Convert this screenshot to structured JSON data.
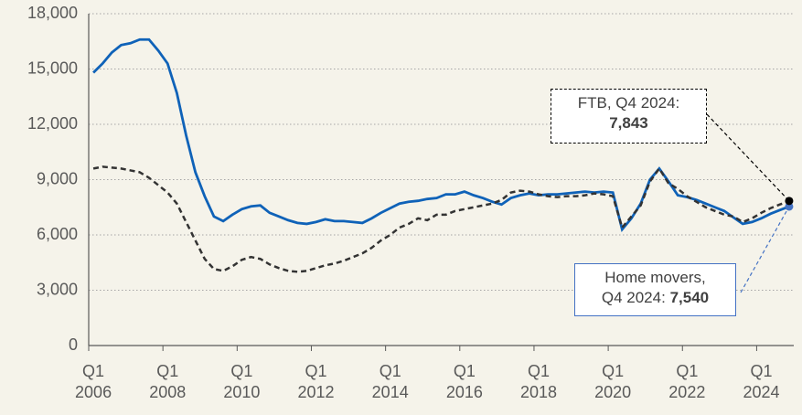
{
  "chart_data": {
    "type": "line",
    "categories": [
      "Q1 2006",
      null,
      null,
      null,
      null,
      null,
      null,
      null,
      "Q1 2008",
      null,
      null,
      null,
      null,
      null,
      null,
      null,
      "Q1 2010",
      null,
      null,
      null,
      null,
      null,
      null,
      null,
      "Q1 2012",
      null,
      null,
      null,
      null,
      null,
      null,
      null,
      "Q1 2014",
      null,
      null,
      null,
      null,
      null,
      null,
      null,
      "Q1 2016",
      null,
      null,
      null,
      null,
      null,
      null,
      null,
      "Q1 2018",
      null,
      null,
      null,
      null,
      null,
      null,
      null,
      "Q1 2020",
      null,
      null,
      null,
      null,
      null,
      null,
      null,
      "Q1 2022",
      null,
      null,
      null,
      null,
      null,
      null,
      null,
      "Q1 2024",
      null,
      null,
      null
    ],
    "series": [
      {
        "color": "#0f62b8",
        "dash": false,
        "annotation": "Home movers, Q4 2024:",
        "values": [
          14800,
          15300,
          15900,
          16300,
          16400,
          16600,
          16600,
          16000,
          15300,
          13700,
          11400,
          9400,
          8100,
          7000,
          6750,
          7100,
          7400,
          7550,
          7600,
          7200,
          7000,
          6800,
          6650,
          6600,
          6700,
          6850,
          6750,
          6750,
          6700,
          6650,
          6900,
          7200,
          7450,
          7700,
          7800,
          7850,
          7950,
          8000,
          8200,
          8200,
          8350,
          8150,
          8000,
          7800,
          7650,
          8000,
          8150,
          8250,
          8150,
          8200,
          8200,
          8250,
          8300,
          8350,
          8300,
          8350,
          8300,
          6300,
          6900,
          7700,
          9000,
          9600,
          8900,
          8150,
          8050,
          7900,
          7700,
          7500,
          7300,
          6950,
          6600,
          6700,
          6900,
          7150,
          7350,
          7540
        ],
        "value_labels": [
          null,
          null,
          null,
          null,
          null,
          null,
          null,
          null,
          null,
          null,
          null,
          null,
          null,
          null,
          null,
          null,
          null,
          null,
          null,
          null,
          null,
          null,
          null,
          null,
          null,
          null,
          null,
          null,
          null,
          null,
          null,
          null,
          null,
          null,
          null,
          null,
          null,
          null,
          null,
          null,
          null,
          null,
          null,
          null,
          null,
          null,
          null,
          null,
          null,
          null,
          null,
          null,
          null,
          null,
          null,
          null,
          null,
          null,
          null,
          null,
          null,
          null,
          null,
          null,
          null,
          null,
          null,
          null,
          null,
          null,
          null,
          null,
          null,
          null,
          null,
          "7,540"
        ]
      },
      {
        "color": "#333333",
        "dash": true,
        "annotation": "FTB, Q4 2024:",
        "values": [
          9600,
          9700,
          9650,
          9600,
          9500,
          9400,
          9100,
          8700,
          8300,
          7700,
          6700,
          5700,
          4700,
          4150,
          4050,
          4300,
          4650,
          4800,
          4700,
          4400,
          4200,
          4050,
          4000,
          4050,
          4200,
          4350,
          4450,
          4600,
          4800,
          5000,
          5300,
          5700,
          6000,
          6400,
          6600,
          6900,
          6800,
          7100,
          7100,
          7300,
          7400,
          7500,
          7600,
          7700,
          7900,
          8300,
          8400,
          8350,
          8200,
          8100,
          8050,
          8100,
          8100,
          8150,
          8250,
          8200,
          8100,
          6400,
          7000,
          7600,
          8900,
          9600,
          8800,
          8500,
          8100,
          7800,
          7500,
          7300,
          7100,
          7000,
          6700,
          6900,
          7200,
          7450,
          7650,
          7843
        ],
        "value_labels": [
          null,
          null,
          null,
          null,
          null,
          null,
          null,
          null,
          null,
          null,
          null,
          null,
          null,
          null,
          null,
          null,
          null,
          null,
          null,
          null,
          null,
          null,
          null,
          null,
          null,
          null,
          null,
          null,
          null,
          null,
          null,
          null,
          null,
          null,
          null,
          null,
          null,
          null,
          null,
          null,
          null,
          null,
          null,
          null,
          null,
          null,
          null,
          null,
          null,
          null,
          null,
          null,
          null,
          null,
          null,
          null,
          null,
          null,
          null,
          null,
          null,
          null,
          null,
          null,
          null,
          null,
          null,
          null,
          null,
          null,
          null,
          null,
          null,
          null,
          null,
          "7,843"
        ]
      }
    ],
    "ylim": [
      0,
      18000
    ],
    "yticks": [
      0,
      {
        "value": 3000,
        "label": "3,000"
      },
      {
        "value": 6000,
        "label": "6,000"
      },
      {
        "value": 9000,
        "label": "9,000"
      },
      {
        "value": 12000,
        "label": "12,000"
      },
      {
        "value": 15000,
        "label": "15,000"
      },
      {
        "value": 18000,
        "label": "18,000"
      }
    ],
    "grid": true
  }
}
